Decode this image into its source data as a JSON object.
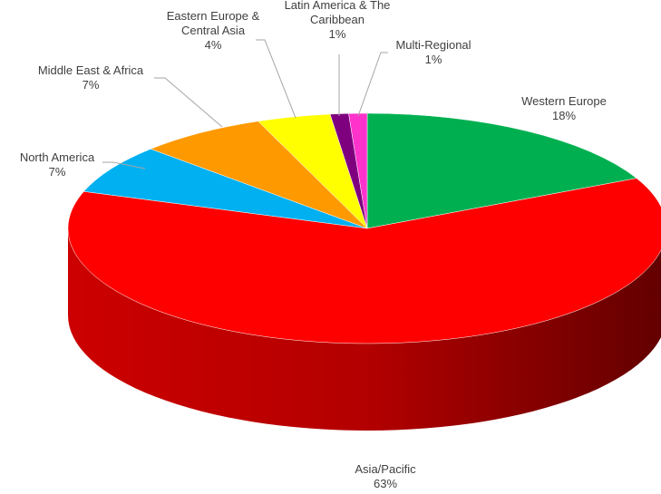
{
  "chart_data": {
    "type": "pie",
    "categories": [
      "Western Europe",
      "Asia/Pacific",
      "North America",
      "Middle East & Africa",
      "Eastern Europe & Central Asia",
      "Latin America & The Caribbean",
      "Multi-Regional"
    ],
    "values": [
      18,
      63,
      7,
      7,
      4,
      1,
      1
    ],
    "value_labels": [
      "18%",
      "63%",
      "7%",
      "7%",
      "4%",
      "1%",
      "1%"
    ],
    "colors": [
      "#00b050",
      "#ff0000",
      "#00b0f0",
      "#ff9900",
      "#ffff00",
      "#7f007f",
      "#ff33cc"
    ]
  }
}
